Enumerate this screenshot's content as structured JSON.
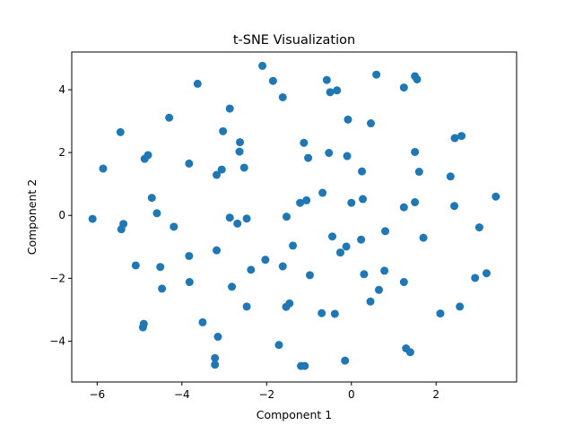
{
  "chart_data": {
    "type": "scatter",
    "title": "t-SNE Visualization",
    "xlabel": "Component 1",
    "ylabel": "Component 2",
    "xlim": [
      -6.6,
      3.9
    ],
    "ylim": [
      -5.3,
      5.2
    ],
    "xticks": [
      -6,
      -4,
      -2,
      0,
      2
    ],
    "yticks": [
      -4,
      -2,
      0,
      2,
      4
    ],
    "grid": false,
    "marker_color": "#1f77b4",
    "points": [
      [
        -2.1,
        4.76
      ],
      [
        -1.85,
        4.28
      ],
      [
        -1.62,
        3.76
      ],
      [
        -0.58,
        4.31
      ],
      [
        -0.5,
        3.92
      ],
      [
        -0.34,
        3.98
      ],
      [
        0.59,
        4.48
      ],
      [
        1.24,
        4.07
      ],
      [
        1.5,
        4.43
      ],
      [
        1.55,
        4.33
      ],
      [
        -3.63,
        4.19
      ],
      [
        -2.87,
        3.4
      ],
      [
        -4.3,
        3.11
      ],
      [
        -5.45,
        2.65
      ],
      [
        -3.03,
        2.68
      ],
      [
        -2.63,
        2.33
      ],
      [
        -0.08,
        3.05
      ],
      [
        0.46,
        2.93
      ],
      [
        2.44,
        2.46
      ],
      [
        2.6,
        2.53
      ],
      [
        -5.86,
        1.49
      ],
      [
        -4.88,
        1.8
      ],
      [
        -4.8,
        1.92
      ],
      [
        -3.83,
        1.65
      ],
      [
        -3.06,
        1.46
      ],
      [
        -3.18,
        1.29
      ],
      [
        -2.64,
        2.03
      ],
      [
        -2.53,
        1.52
      ],
      [
        -1.12,
        2.31
      ],
      [
        -1.02,
        1.83
      ],
      [
        -0.53,
        1.99
      ],
      [
        -0.1,
        1.89
      ],
      [
        0.25,
        1.4
      ],
      [
        1.5,
        2.02
      ],
      [
        1.6,
        1.39
      ],
      [
        2.34,
        1.24
      ],
      [
        -4.71,
        0.56
      ],
      [
        -4.59,
        0.07
      ],
      [
        -4.19,
        -0.36
      ],
      [
        -5.38,
        -0.27
      ],
      [
        -5.43,
        -0.44
      ],
      [
        -6.11,
        -0.11
      ],
      [
        -2.87,
        -0.07
      ],
      [
        -2.69,
        -0.26
      ],
      [
        -2.47,
        -0.1
      ],
      [
        -1.53,
        -0.04
      ],
      [
        -1.21,
        0.4
      ],
      [
        -1.06,
        0.48
      ],
      [
        -0.68,
        0.72
      ],
      [
        0.0,
        0.4
      ],
      [
        0.27,
        0.52
      ],
      [
        1.24,
        0.26
      ],
      [
        1.5,
        0.42
      ],
      [
        2.43,
        0.3
      ],
      [
        3.41,
        0.6
      ],
      [
        3.02,
        -0.38
      ],
      [
        -3.83,
        -1.29
      ],
      [
        -3.18,
        -1.11
      ],
      [
        -2.03,
        -1.41
      ],
      [
        -2.37,
        -1.73
      ],
      [
        -1.62,
        -1.62
      ],
      [
        -1.38,
        -0.96
      ],
      [
        -0.45,
        -0.67
      ],
      [
        -0.26,
        -1.18
      ],
      [
        -0.12,
        -0.99
      ],
      [
        0.23,
        -0.77
      ],
      [
        0.8,
        -0.5
      ],
      [
        1.7,
        -0.71
      ],
      [
        -5.09,
        -1.59
      ],
      [
        -4.51,
        -1.64
      ],
      [
        -4.47,
        -2.33
      ],
      [
        -3.82,
        -2.12
      ],
      [
        -2.82,
        -2.27
      ],
      [
        -0.98,
        -1.9
      ],
      [
        0.3,
        -1.87
      ],
      [
        0.65,
        -2.37
      ],
      [
        0.78,
        -1.76
      ],
      [
        1.24,
        -2.12
      ],
      [
        2.92,
        -1.99
      ],
      [
        3.19,
        -1.84
      ],
      [
        -4.9,
        -3.45
      ],
      [
        -4.92,
        -3.56
      ],
      [
        -3.51,
        -3.4
      ],
      [
        -3.15,
        -3.86
      ],
      [
        -2.47,
        -2.9
      ],
      [
        -1.54,
        -2.91
      ],
      [
        -1.46,
        -2.8
      ],
      [
        -0.7,
        -3.11
      ],
      [
        -0.39,
        -3.13
      ],
      [
        0.45,
        -2.74
      ],
      [
        2.1,
        -3.12
      ],
      [
        2.56,
        -2.9
      ],
      [
        -3.22,
        -4.54
      ],
      [
        -3.22,
        -4.75
      ],
      [
        -1.71,
        -4.12
      ],
      [
        -1.19,
        -4.79
      ],
      [
        -1.1,
        -4.79
      ],
      [
        -0.15,
        -4.62
      ],
      [
        1.29,
        -4.23
      ],
      [
        1.39,
        -4.35
      ]
    ]
  }
}
